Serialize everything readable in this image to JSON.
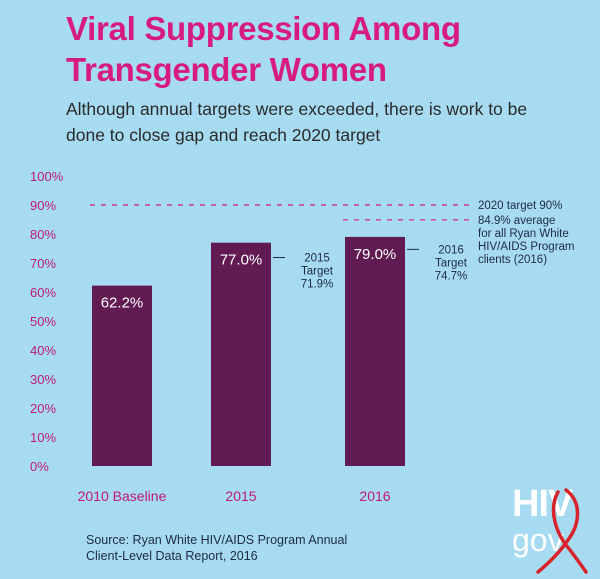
{
  "title": "Viral Suppression Among Transgender Women",
  "subtitle": "Although annual targets were exceeded, there is work to be done to close gap and reach 2020 target",
  "colors": {
    "background": "#a6dbf2",
    "title": "#d81b7e",
    "bar": "#611a52",
    "axis_label": "#c0187a",
    "bar_label": "#ffffff",
    "annotation": "#1f2a44"
  },
  "chart_data": {
    "type": "bar",
    "categories": [
      "2010 Baseline",
      "2015",
      "2016"
    ],
    "values": [
      62.2,
      77.0,
      79.0
    ],
    "value_labels": [
      "62.2%",
      "77.0%",
      "79.0%"
    ],
    "ylim": [
      0,
      100
    ],
    "yticks": [
      0,
      10,
      20,
      30,
      40,
      50,
      60,
      70,
      80,
      90,
      100
    ],
    "ytick_labels": [
      "0%",
      "10%",
      "20%",
      "30%",
      "40%",
      "50%",
      "60%",
      "70%",
      "80%",
      "90%",
      "100%"
    ],
    "xlabel": "",
    "ylabel": "",
    "bar_targets": [
      null,
      {
        "lines": [
          "2015",
          "Target",
          "71.9%"
        ],
        "value": 71.9
      },
      {
        "lines": [
          "2016",
          "Target",
          "74.7%"
        ],
        "value": 74.7
      }
    ],
    "reference_lines": [
      {
        "value": 90,
        "label_lines": [
          "2020 target 90%"
        ],
        "span": "all"
      },
      {
        "value": 84.9,
        "label_lines": [
          "84.9% average",
          "for all Ryan White",
          "HIV/AIDS Program",
          "clients (2016)"
        ],
        "span": "last"
      }
    ]
  },
  "source": {
    "line1": "Source:  Ryan White HIV/AIDS Program Annual",
    "line2": "Client-Level Data Report, 2016"
  },
  "logo": {
    "top": "HIV",
    "bottom": "gov",
    "icon": "red-ribbon-icon"
  }
}
